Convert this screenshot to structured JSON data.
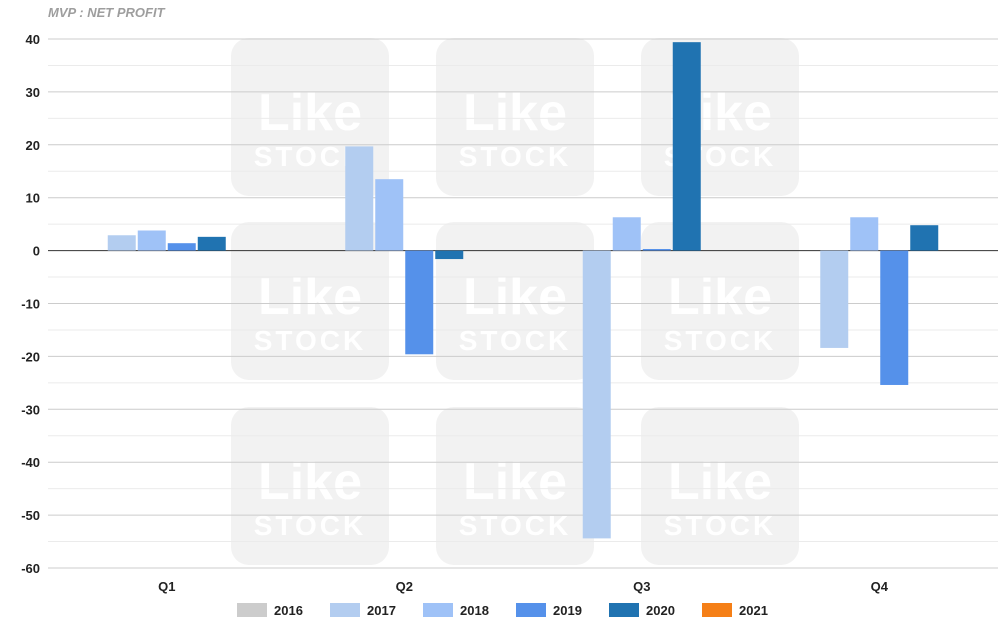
{
  "chart_data": {
    "type": "bar",
    "title": "MVP : NET PROFIT",
    "categories": [
      "Q1",
      "Q2",
      "Q3",
      "Q4"
    ],
    "ylim": [
      -60,
      40
    ],
    "yticks": [
      40,
      30,
      20,
      10,
      0,
      -10,
      -20,
      -30,
      -40,
      -50,
      -60
    ],
    "grid": true,
    "legend_position": "bottom",
    "series": [
      {
        "name": "2016",
        "color": "#cccccc",
        "values": [
          null,
          null,
          null,
          null
        ]
      },
      {
        "name": "2017",
        "color": "#b3cdf0",
        "values": [
          2.9,
          19.7,
          -54.4,
          -18.4
        ]
      },
      {
        "name": "2018",
        "color": "#9fc2f7",
        "values": [
          3.8,
          13.5,
          6.3,
          6.3
        ]
      },
      {
        "name": "2019",
        "color": "#5591ea",
        "values": [
          1.4,
          -19.6,
          0.3,
          -25.4
        ]
      },
      {
        "name": "2020",
        "color": "#2073b1",
        "values": [
          2.6,
          -1.6,
          39.4,
          4.8
        ]
      },
      {
        "name": "2021",
        "color": "#f57f17",
        "values": [
          null,
          null,
          null,
          null
        ]
      }
    ]
  },
  "watermark": {
    "line1": "Like",
    "line2": "STOCK"
  }
}
